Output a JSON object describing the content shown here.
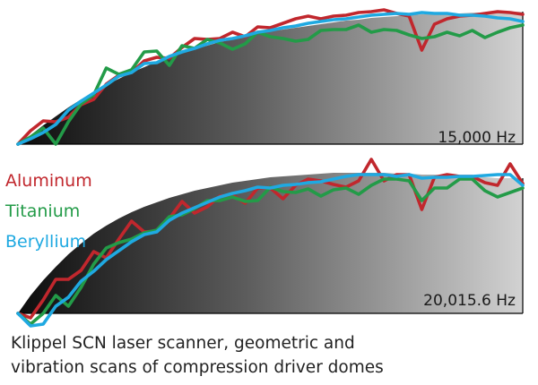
{
  "chart_data": [
    {
      "type": "line",
      "annotation": "15,000 Hz",
      "x": [
        0,
        1,
        2,
        3,
        4,
        5,
        6,
        7,
        8,
        9,
        10,
        11,
        12,
        13,
        14,
        15,
        16,
        17,
        18,
        19,
        20,
        21,
        22,
        23,
        24,
        25,
        26,
        27,
        28,
        29,
        30,
        31,
        32,
        33,
        34,
        35,
        36,
        37,
        38,
        39,
        40
      ],
      "profile": [
        0,
        10,
        21,
        31,
        41,
        50,
        58,
        66,
        73,
        80,
        86,
        92,
        97,
        102,
        106,
        110,
        114,
        117,
        120,
        123,
        126,
        128,
        130,
        132,
        134,
        136,
        138,
        139,
        141,
        142,
        143,
        144,
        145,
        145,
        146,
        146,
        147,
        147,
        148,
        148,
        148
      ],
      "series": [
        {
          "name": "Aluminum",
          "values": [
            0,
            15,
            26,
            25,
            30,
            44,
            50,
            67,
            77,
            80,
            93,
            97,
            96,
            108,
            118,
            117,
            118,
            125,
            120,
            131,
            130,
            135,
            140,
            143,
            140,
            143,
            144,
            147,
            148,
            150,
            146,
            143,
            105,
            134,
            140,
            143,
            144,
            146,
            148,
            147,
            145
          ]
        },
        {
          "name": "Titanium",
          "values": [
            0,
            8,
            18,
            0,
            25,
            45,
            55,
            85,
            78,
            83,
            103,
            104,
            88,
            110,
            107,
            117,
            113,
            106,
            112,
            125,
            120,
            118,
            115,
            117,
            127,
            128,
            128,
            133,
            125,
            128,
            127,
            122,
            118,
            120,
            125,
            121,
            127,
            119,
            125,
            130,
            133
          ]
        },
        {
          "name": "Beryllium",
          "values": [
            0,
            6,
            13,
            22,
            38,
            48,
            57,
            66,
            76,
            80,
            90,
            91,
            98,
            103,
            107,
            112,
            116,
            118,
            121,
            125,
            127,
            130,
            132,
            135,
            137,
            139,
            140,
            142,
            144,
            145,
            146,
            145,
            147,
            146,
            146,
            144,
            144,
            143,
            141,
            140,
            137
          ]
        }
      ]
    },
    {
      "type": "line",
      "annotation": "20,015.6 Hz",
      "x": [
        0,
        1,
        2,
        3,
        4,
        5,
        6,
        7,
        8,
        9,
        10,
        11,
        12,
        13,
        14,
        15,
        16,
        17,
        18,
        19,
        20,
        21,
        22,
        23,
        24,
        25,
        26,
        27,
        28,
        29,
        30,
        31,
        32,
        33,
        34,
        35,
        36,
        37,
        38,
        39,
        40
      ],
      "profile": [
        0,
        20,
        37,
        52,
        66,
        78,
        89,
        98,
        106,
        113,
        119,
        124,
        129,
        133,
        137,
        140,
        143,
        146,
        148,
        150,
        152,
        153,
        154,
        155,
        156,
        157,
        157,
        157,
        157,
        157,
        156,
        156,
        155,
        155,
        154,
        153,
        152,
        152,
        151,
        151,
        151
      ],
      "series": [
        {
          "name": "Aluminum",
          "values": [
            0,
            -5,
            15,
            38,
            38,
            48,
            69,
            62,
            83,
            103,
            91,
            92,
            106,
            125,
            112,
            119,
            131,
            132,
            123,
            140,
            140,
            128,
            143,
            150,
            148,
            144,
            141,
            148,
            172,
            148,
            155,
            155,
            116,
            152,
            155,
            153,
            153,
            146,
            143,
            167,
            145
          ]
        },
        {
          "name": "Titanium",
          "values": [
            0,
            -12,
            0,
            20,
            8,
            29,
            55,
            73,
            79,
            83,
            90,
            93,
            108,
            110,
            117,
            126,
            126,
            130,
            125,
            126,
            141,
            136,
            135,
            139,
            131,
            138,
            140,
            133,
            143,
            150,
            150,
            148,
            126,
            140,
            140,
            150,
            150,
            137,
            130,
            135,
            140
          ]
        },
        {
          "name": "Beryllium",
          "values": [
            0,
            -14,
            -12,
            8,
            18,
            36,
            47,
            60,
            70,
            80,
            88,
            91,
            104,
            112,
            118,
            124,
            130,
            134,
            137,
            141,
            140,
            143,
            144,
            146,
            147,
            150,
            153,
            155,
            155,
            155,
            153,
            155,
            151,
            152,
            152,
            153,
            153,
            154,
            155,
            155,
            143
          ]
        }
      ]
    }
  ],
  "legend": {
    "items": [
      {
        "label": "Aluminum",
        "color": "#c1272d"
      },
      {
        "label": "Titanium",
        "color": "#239b48"
      },
      {
        "label": "Beryllium",
        "color": "#1fa9e1"
      }
    ]
  },
  "caption": {
    "line1": "Klippel SCN laser scanner, geometric and",
    "line2": "vibration scans of compression driver domes"
  }
}
